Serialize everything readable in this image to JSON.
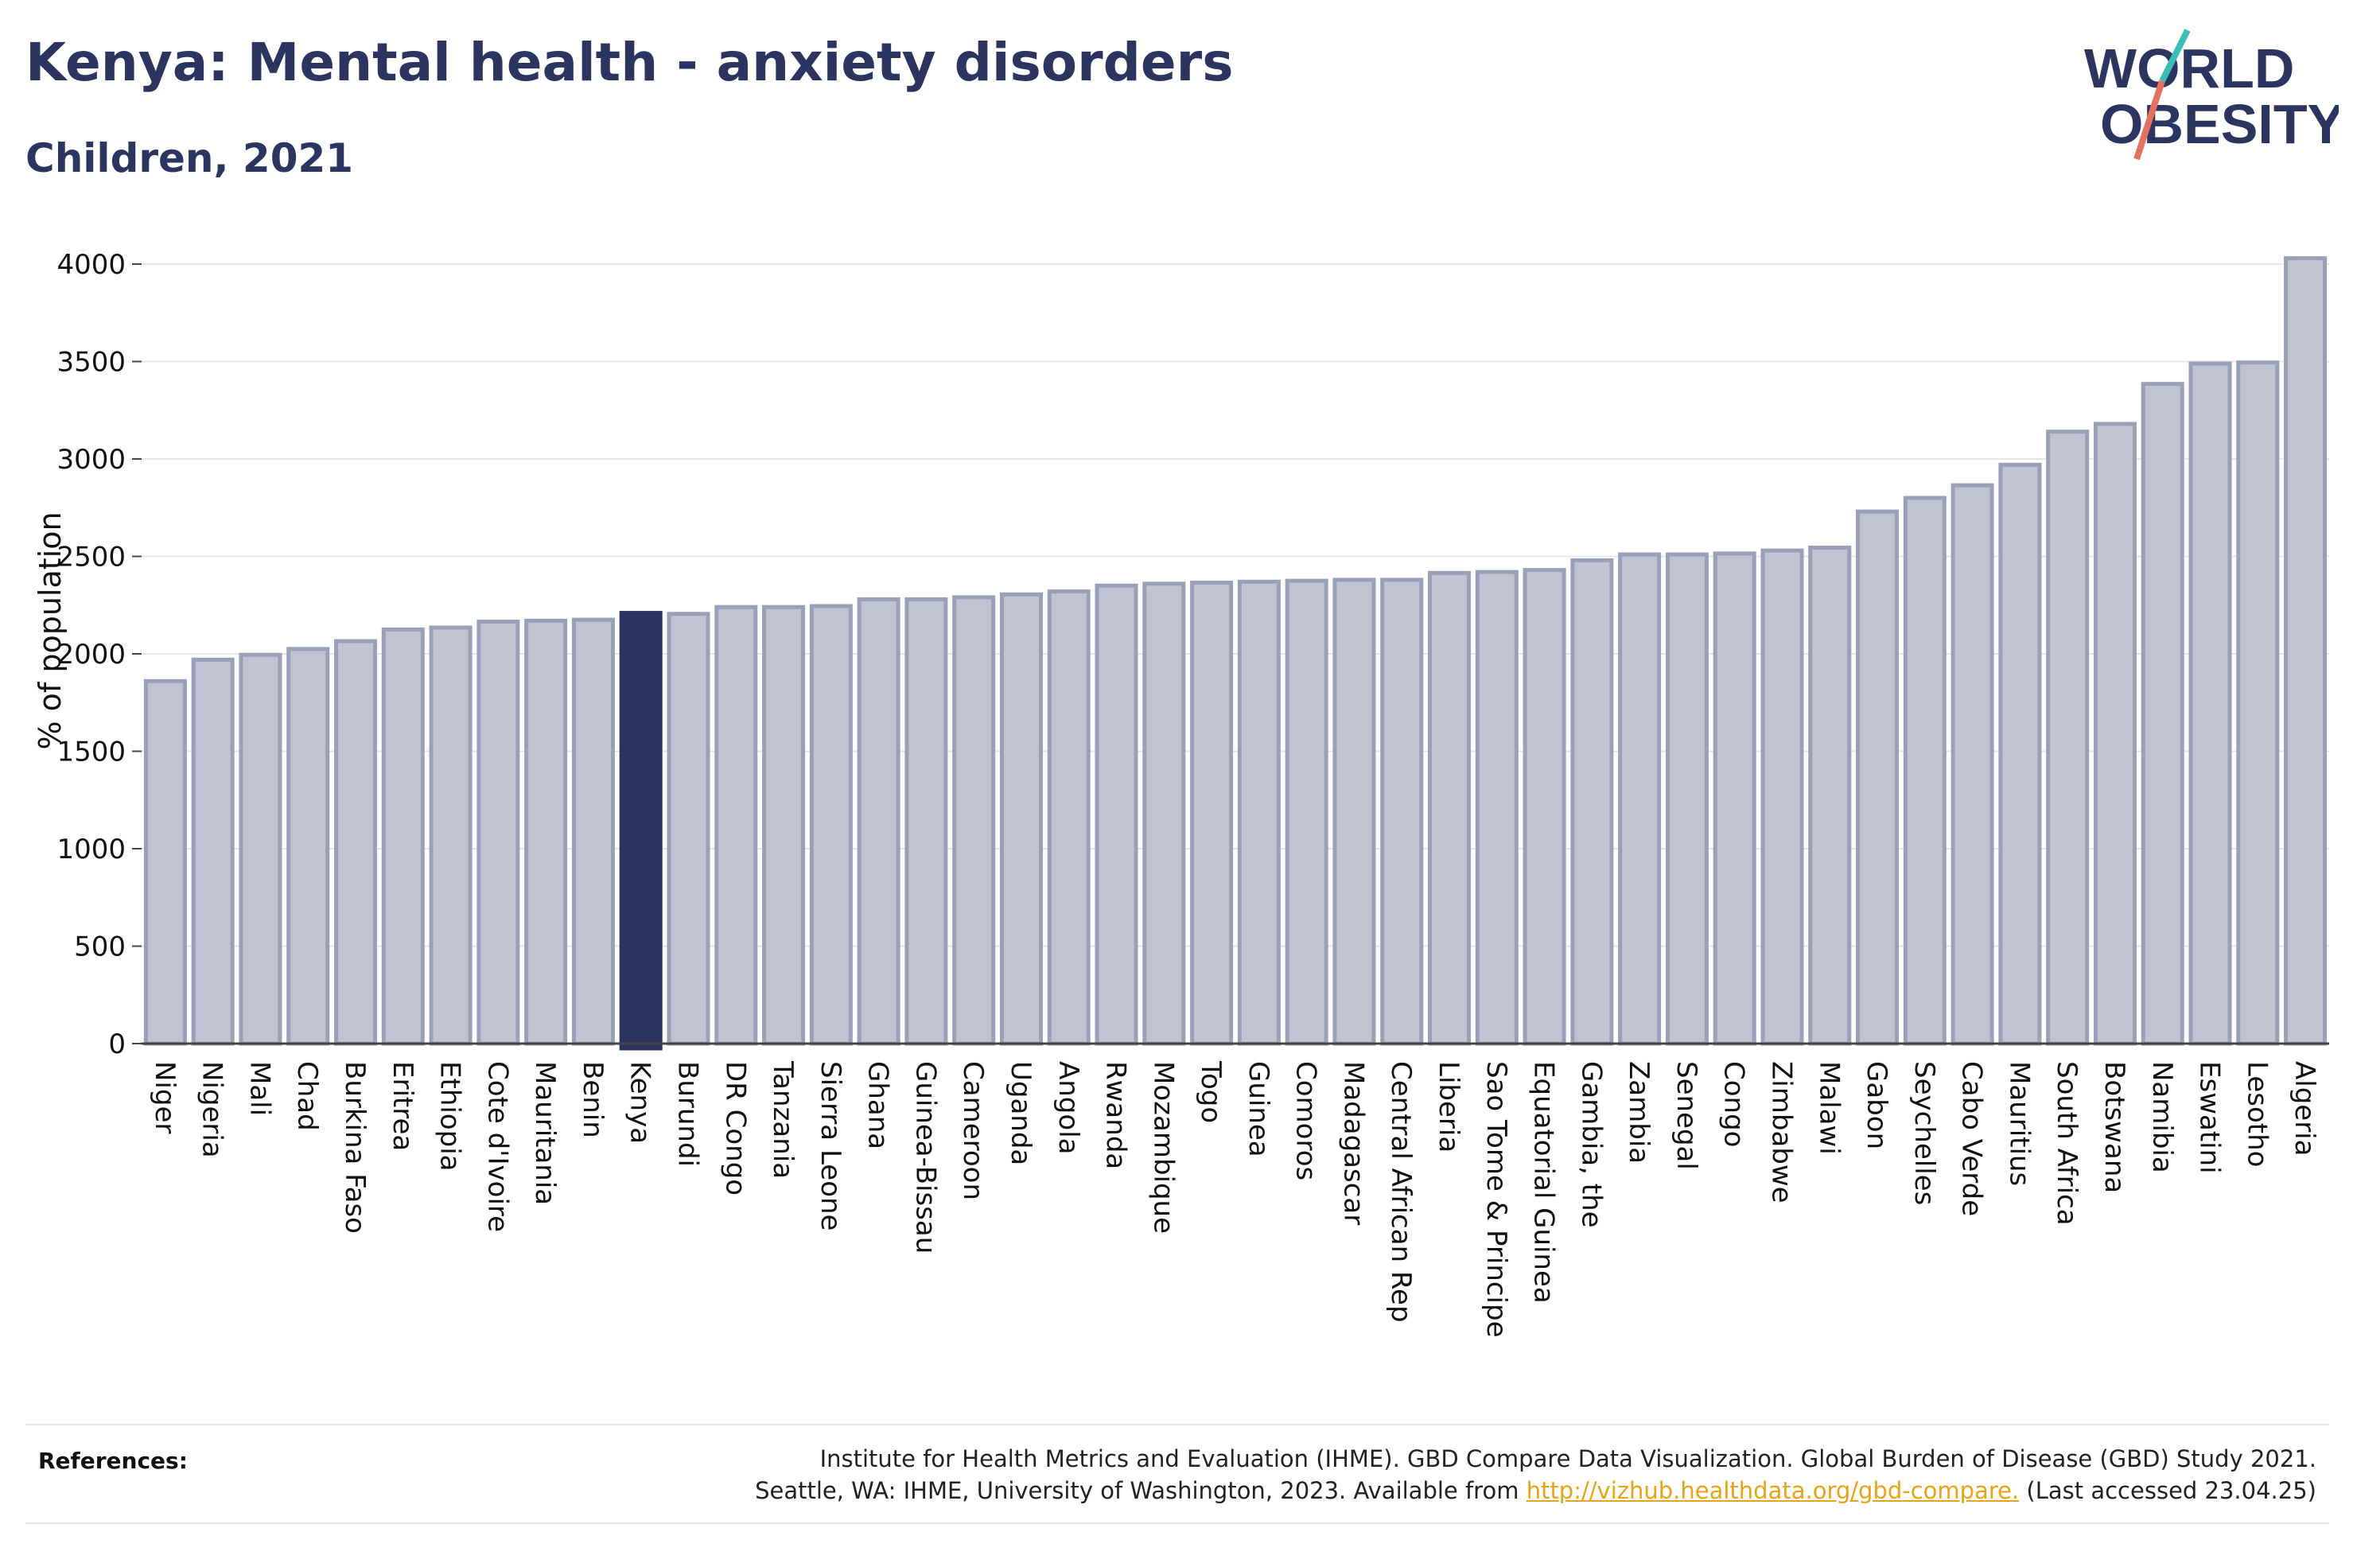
{
  "header": {
    "title": "Kenya: Mental health - anxiety disorders",
    "subtitle": "Children, 2021"
  },
  "logo": {
    "line1": "WORLD",
    "line2": "OBESITY",
    "accent_teal": "#3bbfb4",
    "accent_coral": "#e8705e"
  },
  "colors": {
    "bar_default": "#c0c4d2",
    "bar_default_stroke": "#9aa0b8",
    "bar_highlight": "#2b3560",
    "text": "#2b3560"
  },
  "chart_data": {
    "type": "bar",
    "ylabel": "% of population",
    "ylim": [
      0,
      4100
    ],
    "yticks": [
      0,
      500,
      1000,
      1500,
      2000,
      2500,
      3000,
      3500,
      4000
    ],
    "grid": true,
    "highlight": "Kenya",
    "categories": [
      "Niger",
      "Nigeria",
      "Mali",
      "Chad",
      "Burkina Faso",
      "Eritrea",
      "Ethiopia",
      "Cote d'Ivoire",
      "Mauritania",
      "Benin",
      "Kenya",
      "Burundi",
      "DR Congo",
      "Tanzania",
      "Sierra Leone",
      "Ghana",
      "Guinea-Bissau",
      "Cameroon",
      "Uganda",
      "Angola",
      "Rwanda",
      "Mozambique",
      "Togo",
      "Guinea",
      "Comoros",
      "Madagascar",
      "Central African Rep",
      "Liberia",
      "Sao Tome & Principe",
      "Equatorial Guinea",
      "Gambia, the",
      "Zambia",
      "Senegal",
      "Congo",
      "Zimbabwe",
      "Malawi",
      "Gabon",
      "Seychelles",
      "Cabo Verde",
      "Mauritius",
      "South Africa",
      "Botswana",
      "Namibia",
      "Eswatini",
      "Lesotho",
      "Algeria"
    ],
    "values": [
      1860,
      1970,
      1995,
      2025,
      2065,
      2125,
      2135,
      2165,
      2170,
      2175,
      2210,
      2205,
      2240,
      2240,
      2245,
      2280,
      2280,
      2290,
      2305,
      2320,
      2350,
      2360,
      2365,
      2370,
      2375,
      2380,
      2380,
      2415,
      2420,
      2430,
      2480,
      2510,
      2510,
      2515,
      2530,
      2545,
      2730,
      2800,
      2865,
      2970,
      3140,
      3180,
      3385,
      3490,
      3495,
      4030
    ]
  },
  "footer": {
    "ref_label": "References:",
    "ref_line1": "Institute for Health Metrics and Evaluation (IHME). GBD Compare Data Visualization. Global Burden of Disease (GBD) Study 2021.",
    "ref_line2_pre": "Seattle, WA: IHME, University of Washington, 2023. Available from ",
    "ref_link": "http://vizhub.healthdata.org/gbd-compare.",
    "ref_line2_post": " (Last accessed 23.04.25)"
  }
}
